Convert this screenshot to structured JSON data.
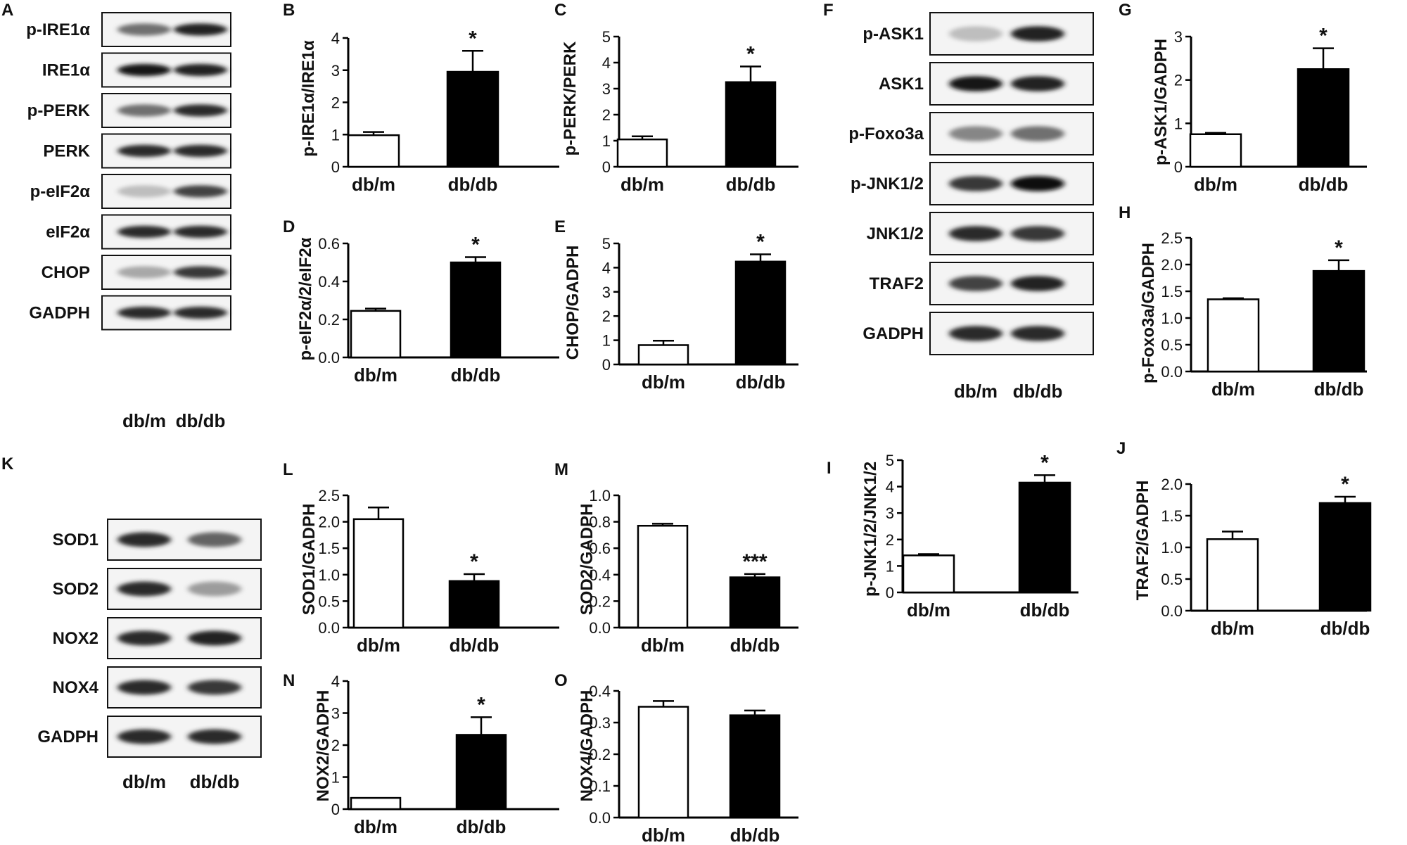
{
  "figure": {
    "blots": [
      {
        "id": "A",
        "panel_letter": "A",
        "rows": [
          {
            "label": "p-IRE1α",
            "intensity": [
              0.55,
              0.9
            ]
          },
          {
            "label": "IRE1α",
            "intensity": [
              0.95,
              0.9
            ]
          },
          {
            "label": "p-PERK",
            "intensity": [
              0.55,
              0.85
            ]
          },
          {
            "label": "PERK",
            "intensity": [
              0.85,
              0.85
            ]
          },
          {
            "label": "p-eIF2α",
            "intensity": [
              0.2,
              0.75
            ]
          },
          {
            "label": "eIF2α",
            "intensity": [
              0.85,
              0.85
            ]
          },
          {
            "label": "CHOP",
            "intensity": [
              0.3,
              0.8
            ]
          },
          {
            "label": "GADPH",
            "intensity": [
              0.85,
              0.85
            ]
          }
        ],
        "lane_labels": [
          "db/m",
          "db/db"
        ]
      },
      {
        "id": "F",
        "panel_letter": "F",
        "rows": [
          {
            "label": "p-ASK1",
            "intensity": [
              0.2,
              0.9
            ]
          },
          {
            "label": "ASK1",
            "intensity": [
              0.95,
              0.9
            ]
          },
          {
            "label": "p-Foxo3a",
            "intensity": [
              0.45,
              0.55
            ]
          },
          {
            "label": "p-JNK1/2",
            "intensity": [
              0.8,
              1.0
            ]
          },
          {
            "label": "JNK1/2",
            "intensity": [
              0.85,
              0.8
            ]
          },
          {
            "label": "TRAF2",
            "intensity": [
              0.75,
              0.9
            ]
          },
          {
            "label": "GADPH",
            "intensity": [
              0.85,
              0.85
            ]
          }
        ],
        "lane_labels": [
          "db/m",
          "db/db"
        ]
      },
      {
        "id": "K",
        "panel_letter": "K",
        "rows": [
          {
            "label": "SOD1",
            "intensity": [
              0.85,
              0.6
            ]
          },
          {
            "label": "SOD2",
            "intensity": [
              0.85,
              0.35
            ]
          },
          {
            "label": "NOX2",
            "intensity": [
              0.85,
              0.9
            ]
          },
          {
            "label": "NOX4",
            "intensity": [
              0.85,
              0.8
            ]
          },
          {
            "label": "GADPH",
            "intensity": [
              0.85,
              0.85
            ]
          }
        ],
        "lane_labels": [
          "db/m",
          "db/db"
        ]
      }
    ]
  },
  "chart_data": [
    {
      "id": "B",
      "panel_letter": "B",
      "type": "bar",
      "categories": [
        "db/m",
        "db/db"
      ],
      "values": [
        0.98,
        2.95
      ],
      "errors": [
        0.1,
        0.65
      ],
      "bar_colors": [
        "#ffffff",
        "#000000"
      ],
      "ylabel": "p-IRE1α/IRE1α",
      "ylim": [
        0,
        4
      ],
      "yticks": [
        "0",
        "1",
        "2",
        "3",
        "4"
      ],
      "significance": [
        "",
        "*"
      ]
    },
    {
      "id": "C",
      "panel_letter": "C",
      "type": "bar",
      "categories": [
        "db/m",
        "db/db"
      ],
      "values": [
        1.05,
        3.25
      ],
      "errors": [
        0.12,
        0.6
      ],
      "bar_colors": [
        "#ffffff",
        "#000000"
      ],
      "ylabel": "p-PERK/PERK",
      "ylim": [
        0,
        5
      ],
      "yticks": [
        "0",
        "1",
        "2",
        "3",
        "4",
        "5"
      ],
      "significance": [
        "",
        "*"
      ]
    },
    {
      "id": "D",
      "panel_letter": "D",
      "type": "bar",
      "categories": [
        "db/m",
        "db/db"
      ],
      "values": [
        0.245,
        0.5
      ],
      "errors": [
        0.012,
        0.028
      ],
      "bar_colors": [
        "#ffffff",
        "#000000"
      ],
      "ylabel": "p-eIF2α/2/eIF2α",
      "ylim": [
        0,
        0.6
      ],
      "yticks": [
        "0.0",
        "0.2",
        "0.4",
        "0.6"
      ],
      "significance": [
        "",
        "*"
      ]
    },
    {
      "id": "E",
      "panel_letter": "E",
      "type": "bar",
      "categories": [
        "db/m",
        "db/db"
      ],
      "values": [
        0.8,
        4.25
      ],
      "errors": [
        0.18,
        0.3
      ],
      "bar_colors": [
        "#ffffff",
        "#000000"
      ],
      "ylabel": "CHOP/GADPH",
      "ylim": [
        0,
        5
      ],
      "yticks": [
        "0",
        "1",
        "2",
        "3",
        "4",
        "5"
      ],
      "significance": [
        "",
        "*"
      ]
    },
    {
      "id": "G",
      "panel_letter": "G",
      "type": "bar",
      "categories": [
        "db/m",
        "db/db"
      ],
      "values": [
        0.75,
        2.25
      ],
      "errors": [
        0.03,
        0.48
      ],
      "bar_colors": [
        "#ffffff",
        "#000000"
      ],
      "ylabel": "p-ASK1/GADPH",
      "ylim": [
        0,
        3
      ],
      "yticks": [
        "0",
        "1",
        "2",
        "3"
      ],
      "significance": [
        "",
        "*"
      ]
    },
    {
      "id": "H",
      "panel_letter": "H",
      "type": "bar",
      "categories": [
        "db/m",
        "db/db"
      ],
      "values": [
        1.35,
        1.88
      ],
      "errors": [
        0.02,
        0.2
      ],
      "bar_colors": [
        "#ffffff",
        "#000000"
      ],
      "ylabel": "p-Foxo3a/GADPH",
      "ylim": [
        0,
        2.5
      ],
      "yticks": [
        "0.0",
        "0.5",
        "1.0",
        "1.5",
        "2.0",
        "2.5"
      ],
      "significance": [
        "",
        "*"
      ]
    },
    {
      "id": "I",
      "panel_letter": "I",
      "type": "bar",
      "categories": [
        "db/m",
        "db/db"
      ],
      "values": [
        1.4,
        4.15
      ],
      "errors": [
        0.05,
        0.28
      ],
      "bar_colors": [
        "#ffffff",
        "#000000"
      ],
      "ylabel": "p-JNK1/2/JNK1/2",
      "ylim": [
        0,
        5
      ],
      "yticks": [
        "0",
        "1",
        "2",
        "3",
        "4",
        "5"
      ],
      "significance": [
        "",
        "*"
      ]
    },
    {
      "id": "J",
      "panel_letter": "J",
      "type": "bar",
      "categories": [
        "db/m",
        "db/db"
      ],
      "values": [
        1.13,
        1.7
      ],
      "errors": [
        0.12,
        0.1
      ],
      "bar_colors": [
        "#ffffff",
        "#000000"
      ],
      "ylabel": "TRAF2/GADPH",
      "ylim": [
        0,
        2.0
      ],
      "yticks": [
        "0.0",
        "0.5",
        "1.0",
        "1.5",
        "2.0"
      ],
      "significance": [
        "",
        "*"
      ]
    },
    {
      "id": "L",
      "panel_letter": "L",
      "type": "bar",
      "categories": [
        "db/m",
        "db/db"
      ],
      "values": [
        2.05,
        0.88
      ],
      "errors": [
        0.22,
        0.13
      ],
      "bar_colors": [
        "#ffffff",
        "#000000"
      ],
      "ylabel": "SOD1/GADPH",
      "ylim": [
        0,
        2.5
      ],
      "yticks": [
        "0.0",
        "0.5",
        "1.0",
        "1.5",
        "2.0",
        "2.5"
      ],
      "significance": [
        "",
        "*"
      ]
    },
    {
      "id": "M",
      "panel_letter": "M",
      "type": "bar",
      "categories": [
        "db/m",
        "db/db"
      ],
      "values": [
        0.77,
        0.38
      ],
      "errors": [
        0.015,
        0.025
      ],
      "bar_colors": [
        "#ffffff",
        "#000000"
      ],
      "ylabel": "SOD2/GADPH",
      "ylim": [
        0,
        1.0
      ],
      "yticks": [
        "0.0",
        "0.2",
        "0.4",
        "0.6",
        "0.8",
        "1.0"
      ],
      "significance": [
        "",
        "***"
      ]
    },
    {
      "id": "N",
      "panel_letter": "N",
      "type": "bar",
      "categories": [
        "db/m",
        "db/db"
      ],
      "values": [
        0.35,
        2.32
      ],
      "errors": [
        0.0,
        0.55
      ],
      "bar_colors": [
        "#ffffff",
        "#000000"
      ],
      "ylabel": "NOX2/GADPH",
      "ylim": [
        0,
        4
      ],
      "yticks": [
        "0",
        "1",
        "2",
        "3",
        "4"
      ],
      "significance": [
        "",
        "*"
      ]
    },
    {
      "id": "O",
      "panel_letter": "O",
      "type": "bar",
      "categories": [
        "db/m",
        "db/db"
      ],
      "values": [
        0.35,
        0.323
      ],
      "errors": [
        0.018,
        0.015
      ],
      "bar_colors": [
        "#ffffff",
        "#000000"
      ],
      "ylabel": "NOX4/GADPH",
      "ylim": [
        0,
        0.4
      ],
      "yticks": [
        "0.0",
        "0.1",
        "0.2",
        "0.3",
        "0.4"
      ],
      "significance": [
        "",
        ""
      ]
    }
  ]
}
